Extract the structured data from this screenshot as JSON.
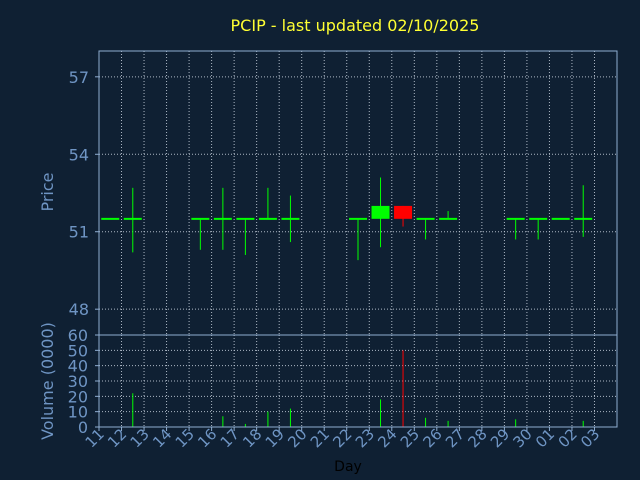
{
  "chart_data": {
    "type": "candlestick",
    "title": "PCIP - last updated 02/10/2025",
    "xlabel": "Day",
    "x_ticks": [
      "11",
      "12",
      "13",
      "14",
      "15",
      "16",
      "17",
      "18",
      "19",
      "20",
      "21",
      "22",
      "23",
      "24",
      "25",
      "26",
      "27",
      "28",
      "29",
      "30",
      "01",
      "02",
      "03"
    ],
    "price_panel": {
      "ylabel": "Price",
      "ylim": [
        47,
        58
      ],
      "y_ticks": [
        48,
        51,
        54,
        57
      ],
      "grid": true
    },
    "volume_panel": {
      "ylabel": "Volume (0000)",
      "ylim": [
        0,
        60
      ],
      "y_ticks": [
        0,
        10,
        20,
        30,
        40,
        50,
        60
      ],
      "grid": true
    },
    "candles": [
      {
        "day": "11",
        "open": 51.5,
        "high": 51.5,
        "low": 51.5,
        "close": 51.5,
        "volume": 0
      },
      {
        "day": "12",
        "open": 51.5,
        "high": 52.7,
        "low": 50.2,
        "close": 51.5,
        "volume": 22
      },
      {
        "day": "15",
        "open": 51.5,
        "high": 51.5,
        "low": 50.3,
        "close": 51.5,
        "volume": 0
      },
      {
        "day": "16",
        "open": 51.5,
        "high": 52.7,
        "low": 50.3,
        "close": 51.5,
        "volume": 7
      },
      {
        "day": "17",
        "open": 51.5,
        "high": 51.5,
        "low": 50.1,
        "close": 51.5,
        "volume": 2
      },
      {
        "day": "18",
        "open": 51.5,
        "high": 52.7,
        "low": 51.5,
        "close": 51.5,
        "volume": 10
      },
      {
        "day": "19",
        "open": 51.5,
        "high": 52.4,
        "low": 50.6,
        "close": 51.5,
        "volume": 12
      },
      {
        "day": "22",
        "open": 51.5,
        "high": 51.5,
        "low": 49.9,
        "close": 51.5,
        "volume": 0
      },
      {
        "day": "23",
        "open": 51.5,
        "high": 53.1,
        "low": 50.4,
        "close": 52.0,
        "volume": 18
      },
      {
        "day": "24",
        "open": 52.0,
        "high": 52.0,
        "low": 51.2,
        "close": 51.5,
        "volume": 50
      },
      {
        "day": "25",
        "open": 51.5,
        "high": 51.5,
        "low": 50.7,
        "close": 51.5,
        "volume": 6
      },
      {
        "day": "26",
        "open": 51.5,
        "high": 51.8,
        "low": 51.5,
        "close": 51.5,
        "volume": 4
      },
      {
        "day": "29",
        "open": 51.5,
        "high": 51.5,
        "low": 50.7,
        "close": 51.5,
        "volume": 5
      },
      {
        "day": "30",
        "open": 51.5,
        "high": 51.5,
        "low": 50.7,
        "close": 51.5,
        "volume": 0
      },
      {
        "day": "01",
        "open": 51.5,
        "high": 51.5,
        "low": 51.5,
        "close": 51.5,
        "volume": 0
      },
      {
        "day": "02",
        "open": 51.5,
        "high": 52.8,
        "low": 50.8,
        "close": 51.5,
        "volume": 4
      }
    ],
    "colors": {
      "background": "#0f2033",
      "title": "#ffff33",
      "axis_label": "#6f95c4",
      "tick_label": "#6f95c4",
      "axes": "#8faed2",
      "grid": "#c9d3df",
      "up": "#00ff00",
      "down": "#ff0000",
      "xlabel": "#000000"
    }
  }
}
